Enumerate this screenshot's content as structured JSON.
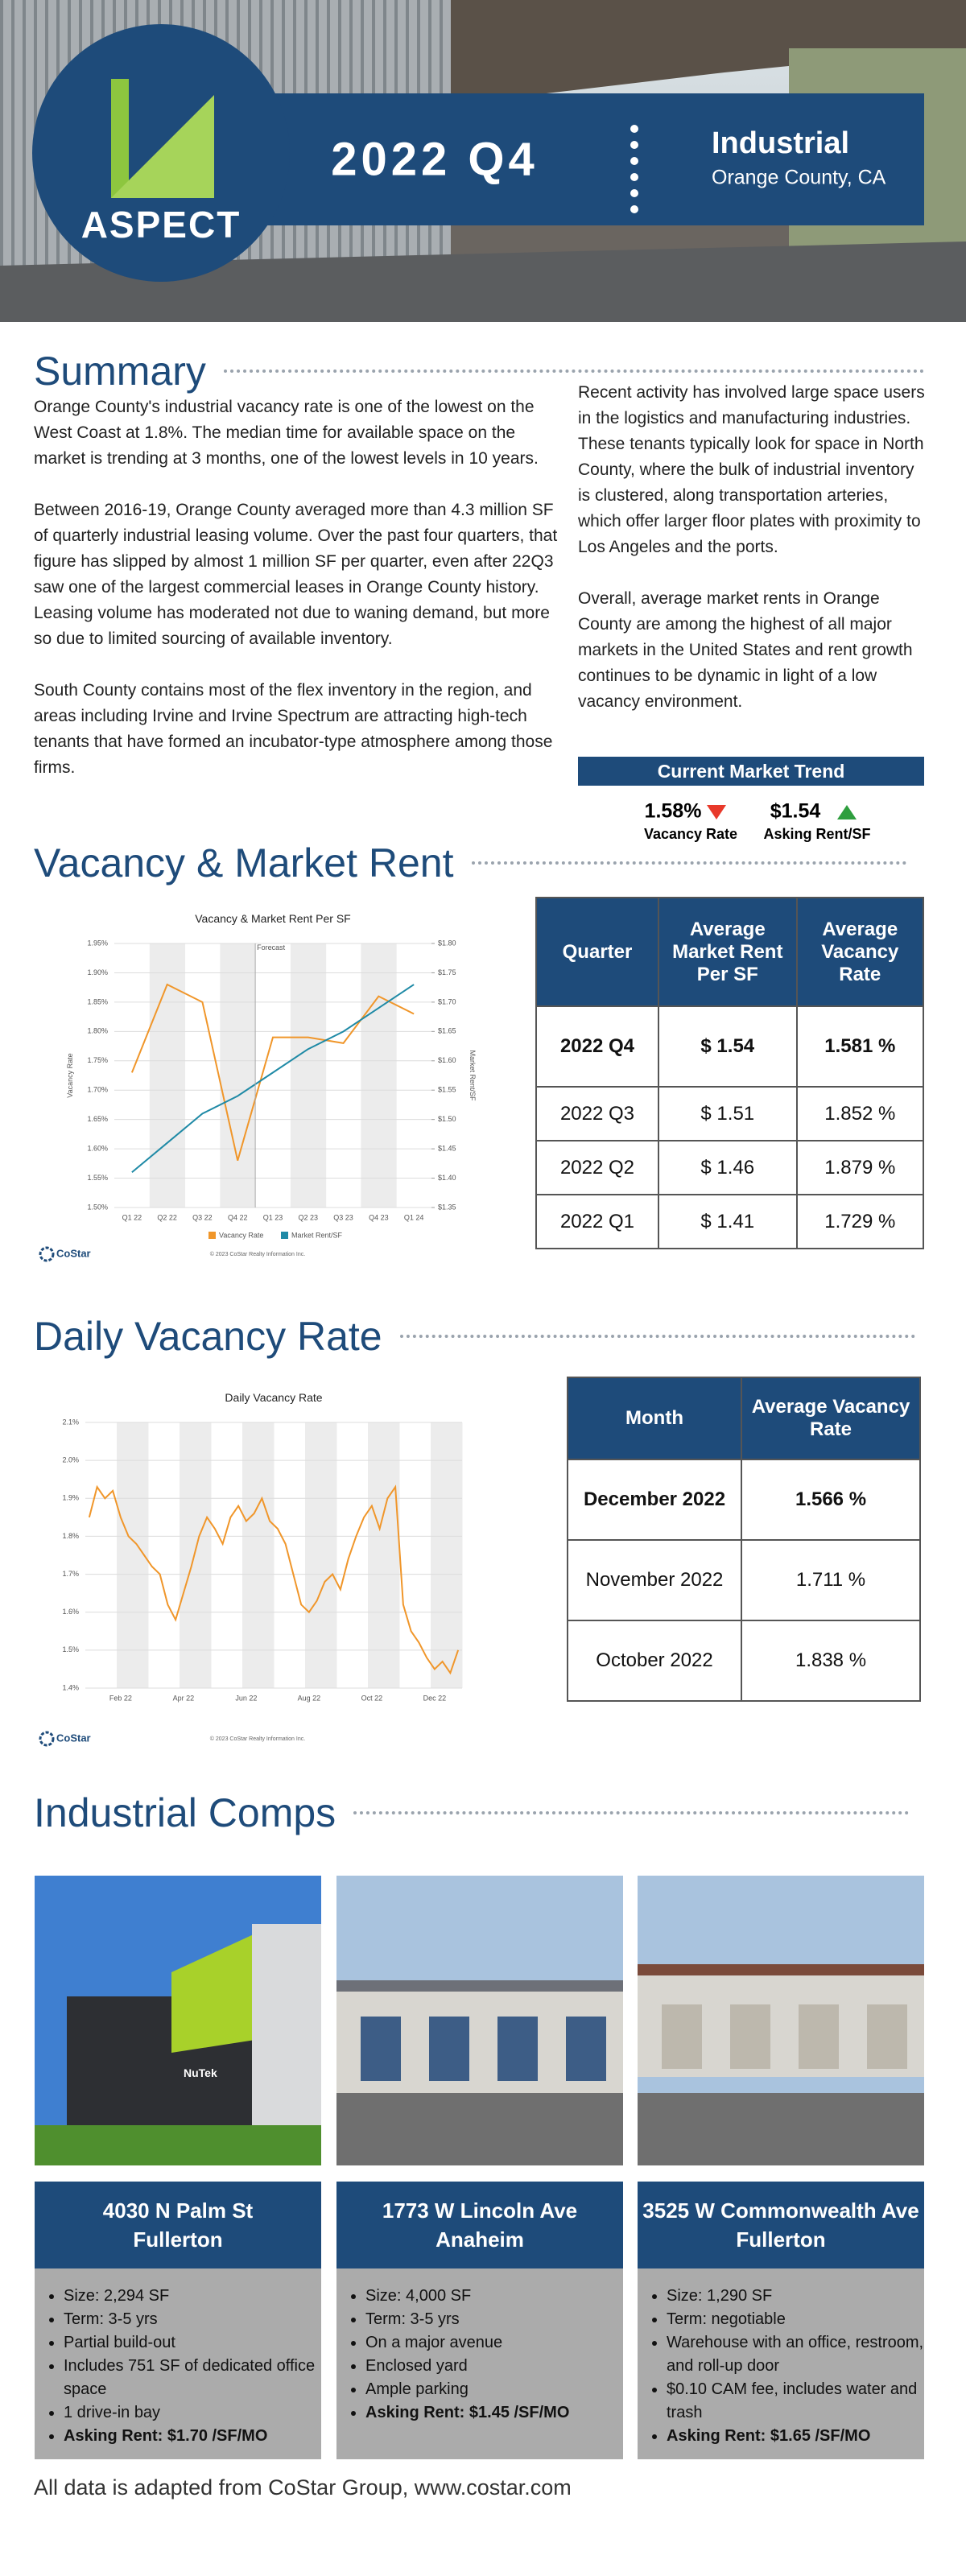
{
  "header": {
    "logo": "ASPECT",
    "period": "2022 Q4",
    "sector": "Industrial",
    "location": "Orange County, CA"
  },
  "summary": {
    "title": "Summary",
    "left": [
      "Orange County's industrial vacancy rate is one of the lowest on the West Coast at 1.8%. The median time for available space on the market is trending at 3 months, one of the lowest levels in 10 years.",
      "Between 2016-19, Orange County averaged more than 4.3 million SF of quarterly industrial leasing volume. Over the past four quarters, that figure has slipped by almost 1 million SF per quarter, even after 22Q3 saw one of the largest commercial leases in Orange County history. Leasing volume has moderated not due to waning demand, but more so due to limited sourcing of available inventory.",
      "South County contains most of the flex inventory in the region, and areas including Irvine and Irvine Spectrum are attracting high-tech tenants that have formed an incubator-type atmosphere among those firms."
    ],
    "right": [
      "Recent activity has involved large space users in the logistics and manufacturing industries. These tenants typically look for space in North County, where the bulk of industrial inventory is clustered, along transportation arteries, which offer larger floor plates with proximity to Los Angeles and the ports.",
      "Overall, average market rents in Orange County are among the highest of all major markets in the United States and rent growth continues to be dynamic in light of a low vacancy environment."
    ],
    "trend": {
      "title": "Current Market Trend",
      "items": [
        {
          "value": "1.58%",
          "label": "Vacancy Rate"
        },
        {
          "value": "$1.54",
          "label": "Asking Rent/SF"
        }
      ]
    }
  },
  "vacancy_rent": {
    "title": "Vacancy & Market Rent",
    "chart_data": {
      "type": "line",
      "title": "Vacancy & Market Rent Per SF",
      "categories": [
        "Q1 22",
        "Q2 22",
        "Q3 22",
        "Q4 22",
        "Q1 23",
        "Q2 23",
        "Q3 23",
        "Q4 23",
        "Q1 24"
      ],
      "series": [
        {
          "name": "Vacancy Rate",
          "color": "#f0962a",
          "values": [
            1.73,
            1.88,
            1.85,
            1.58,
            1.79,
            1.79,
            1.78,
            1.86,
            1.83
          ]
        },
        {
          "name": "Market Rent/SF",
          "color": "#1f8aa6",
          "axis": "y2",
          "values": [
            1.41,
            1.46,
            1.51,
            1.54,
            1.58,
            1.62,
            1.65,
            1.69,
            1.73
          ]
        }
      ],
      "ylabel": "Vacancy Rate",
      "y2label": "Market Rent/SF",
      "ylim": [
        1.5,
        1.95
      ],
      "yticks": [
        {
          "value": 1.5,
          "label": "1.50%"
        },
        {
          "value": 1.55,
          "label": "1.55%"
        },
        {
          "value": 1.6,
          "label": "1.60%"
        },
        {
          "value": 1.65,
          "label": "1.65%"
        },
        {
          "value": 1.7,
          "label": "1.70%"
        },
        {
          "value": 1.75,
          "label": "1.75%"
        },
        {
          "value": 1.8,
          "label": "1.80%"
        },
        {
          "value": 1.85,
          "label": "1.85%"
        },
        {
          "value": 1.9,
          "label": "1.90%"
        },
        {
          "value": 1.95,
          "label": "1.95%"
        }
      ],
      "y2lim": [
        1.35,
        1.8
      ],
      "y2ticks": [
        {
          "value": 1.35,
          "label": "$1.35"
        },
        {
          "value": 1.4,
          "label": "$1.40"
        },
        {
          "value": 1.45,
          "label": "$1.45"
        },
        {
          "value": 1.5,
          "label": "$1.50"
        },
        {
          "value": 1.55,
          "label": "$1.55"
        },
        {
          "value": 1.6,
          "label": "$1.60"
        },
        {
          "value": 1.65,
          "label": "$1.65"
        },
        {
          "value": 1.7,
          "label": "$1.70"
        },
        {
          "value": 1.75,
          "label": "$1.75"
        },
        {
          "value": 1.8,
          "label": "$1.80"
        }
      ],
      "annotation": "Forecast",
      "logo": "CoStar",
      "source": "© 2023 CoStar Realty Information Inc."
    },
    "table": {
      "headers": [
        "Quarter",
        "Average Market Rent Per SF",
        "Average Vacancy Rate"
      ],
      "rows": [
        [
          "2022 Q4",
          "$ 1.54",
          "1.581 %"
        ],
        [
          "2022 Q3",
          "$ 1.51",
          "1.852 %"
        ],
        [
          "2022 Q2",
          "$ 1.46",
          "1.879 %"
        ],
        [
          "2022 Q1",
          "$ 1.41",
          "1.729 %"
        ]
      ]
    }
  },
  "daily_vacancy": {
    "title": "Daily Vacancy Rate",
    "chart_data": {
      "type": "line",
      "title": "Daily Vacancy Rate",
      "color": "#f0962a",
      "categories": [
        null,
        null,
        null,
        null,
        "Feb 22",
        null,
        null,
        null,
        null,
        null,
        null,
        null,
        "Apr 22",
        null,
        null,
        null,
        null,
        null,
        null,
        null,
        "Jun 22",
        null,
        null,
        null,
        null,
        null,
        null,
        null,
        "Aug 22",
        null,
        null,
        null,
        null,
        null,
        null,
        null,
        "Oct 22",
        null,
        null,
        null,
        null,
        null,
        null,
        null,
        "Dec 22",
        null,
        null,
        null
      ],
      "values": [
        1.85,
        1.93,
        1.9,
        1.92,
        1.85,
        1.8,
        1.78,
        1.75,
        1.72,
        1.7,
        1.62,
        1.58,
        1.65,
        1.72,
        1.8,
        1.85,
        1.82,
        1.78,
        1.85,
        1.88,
        1.84,
        1.86,
        1.9,
        1.84,
        1.82,
        1.78,
        1.7,
        1.62,
        1.6,
        1.63,
        1.68,
        1.7,
        1.66,
        1.74,
        1.8,
        1.85,
        1.88,
        1.82,
        1.9,
        1.93,
        1.62,
        1.55,
        1.52,
        1.48,
        1.45,
        1.47,
        1.44,
        1.5
      ],
      "ylim": [
        1.4,
        2.1
      ],
      "yticks": [
        {
          "value": 1.4,
          "label": "1.4%"
        },
        {
          "value": 1.5,
          "label": "1.5%"
        },
        {
          "value": 1.6,
          "label": "1.6%"
        },
        {
          "value": 1.7,
          "label": "1.7%"
        },
        {
          "value": 1.8,
          "label": "1.8%"
        },
        {
          "value": 1.9,
          "label": "1.9%"
        },
        {
          "value": 2.0,
          "label": "2.0%"
        },
        {
          "value": 2.1,
          "label": "2.1%"
        }
      ],
      "logo": "CoStar",
      "source": "© 2023 CoStar Realty Information Inc."
    },
    "table": {
      "headers": [
        "Month",
        "Average Vacancy Rate"
      ],
      "rows": [
        [
          "December 2022",
          "1.566 %"
        ],
        [
          "November 2022",
          "1.711 %"
        ],
        [
          "October 2022",
          "1.838 %"
        ]
      ]
    }
  },
  "comps": {
    "title": "Industrial Comps",
    "items": [
      {
        "address": "4030 N Palm St",
        "city": "Fullerton",
        "sign": "NuTek",
        "bullets": [
          "Size: 2,294 SF",
          "Term: 3-5 yrs",
          "Partial build-out",
          "Includes 751 SF of dedicated office space",
          "1 drive-in bay"
        ],
        "asking": "Asking Rent: $1.70 /SF/MO"
      },
      {
        "address": "1773 W Lincoln Ave",
        "city": "Anaheim",
        "bullets": [
          "Size: 4,000 SF",
          "Term: 3-5 yrs",
          "On a major avenue",
          "Enclosed yard",
          "Ample parking"
        ],
        "asking": "Asking Rent: $1.45 /SF/MO"
      },
      {
        "address": "3525 W Commonwealth Ave",
        "city": "Fullerton",
        "bullets": [
          "Size: 1,290 SF",
          "Term: negotiable",
          "Warehouse with an office, restroom, and roll-up door",
          "$0.10 CAM fee, includes water and trash"
        ],
        "asking": "Asking Rent: $1.65 /SF/MO"
      }
    ]
  },
  "footer": "All data is adapted from CoStar Group, www.costar.com"
}
